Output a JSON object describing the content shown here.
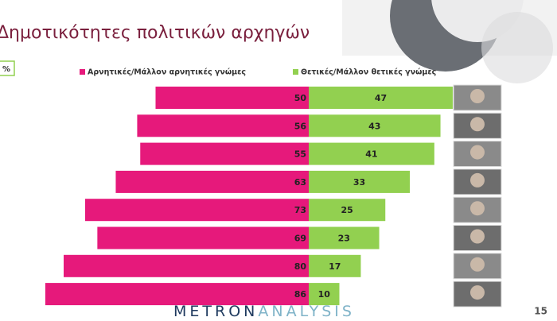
{
  "chart_data": {
    "type": "diverging-bar",
    "title": "Δημοτικότητες πολιτικών αρχηγών",
    "unit_label": "%",
    "series": [
      {
        "name": "Αρνητικές/Μάλλον αρνητικές γνώμες",
        "color": "#e6197b",
        "values": [
          50,
          56,
          55,
          63,
          73,
          69,
          80,
          86
        ]
      },
      {
        "name": "Θετικές/Μάλλον θετικές γνώμες",
        "color": "#92d050",
        "values": [
          47,
          43,
          41,
          33,
          25,
          23,
          17,
          10
        ]
      }
    ]
  },
  "footer": {
    "brand_first": "METRON",
    "brand_second": "ANALYSIS",
    "page_number": "15"
  }
}
